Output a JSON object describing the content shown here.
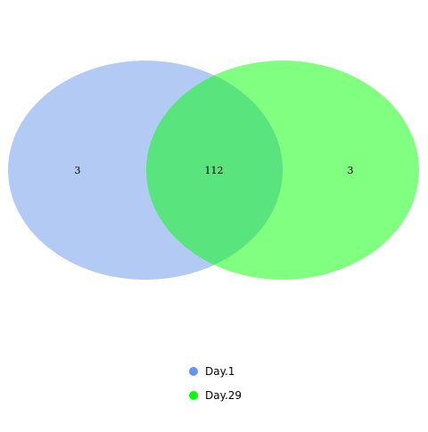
{
  "venn": {
    "sets": [
      {
        "name": "Day.1",
        "color": "#6495ED",
        "fill": "#B3CBF4",
        "only_count": "3"
      },
      {
        "name": "Day.29",
        "color": "#00FF00",
        "fill": "#80FF80",
        "only_count": "3"
      }
    ],
    "intersection_count": "112"
  },
  "legend": {
    "items": [
      {
        "label": "Day.1",
        "color": "#6495ED"
      },
      {
        "label": "Day.29",
        "color": "#00FF00"
      }
    ]
  }
}
